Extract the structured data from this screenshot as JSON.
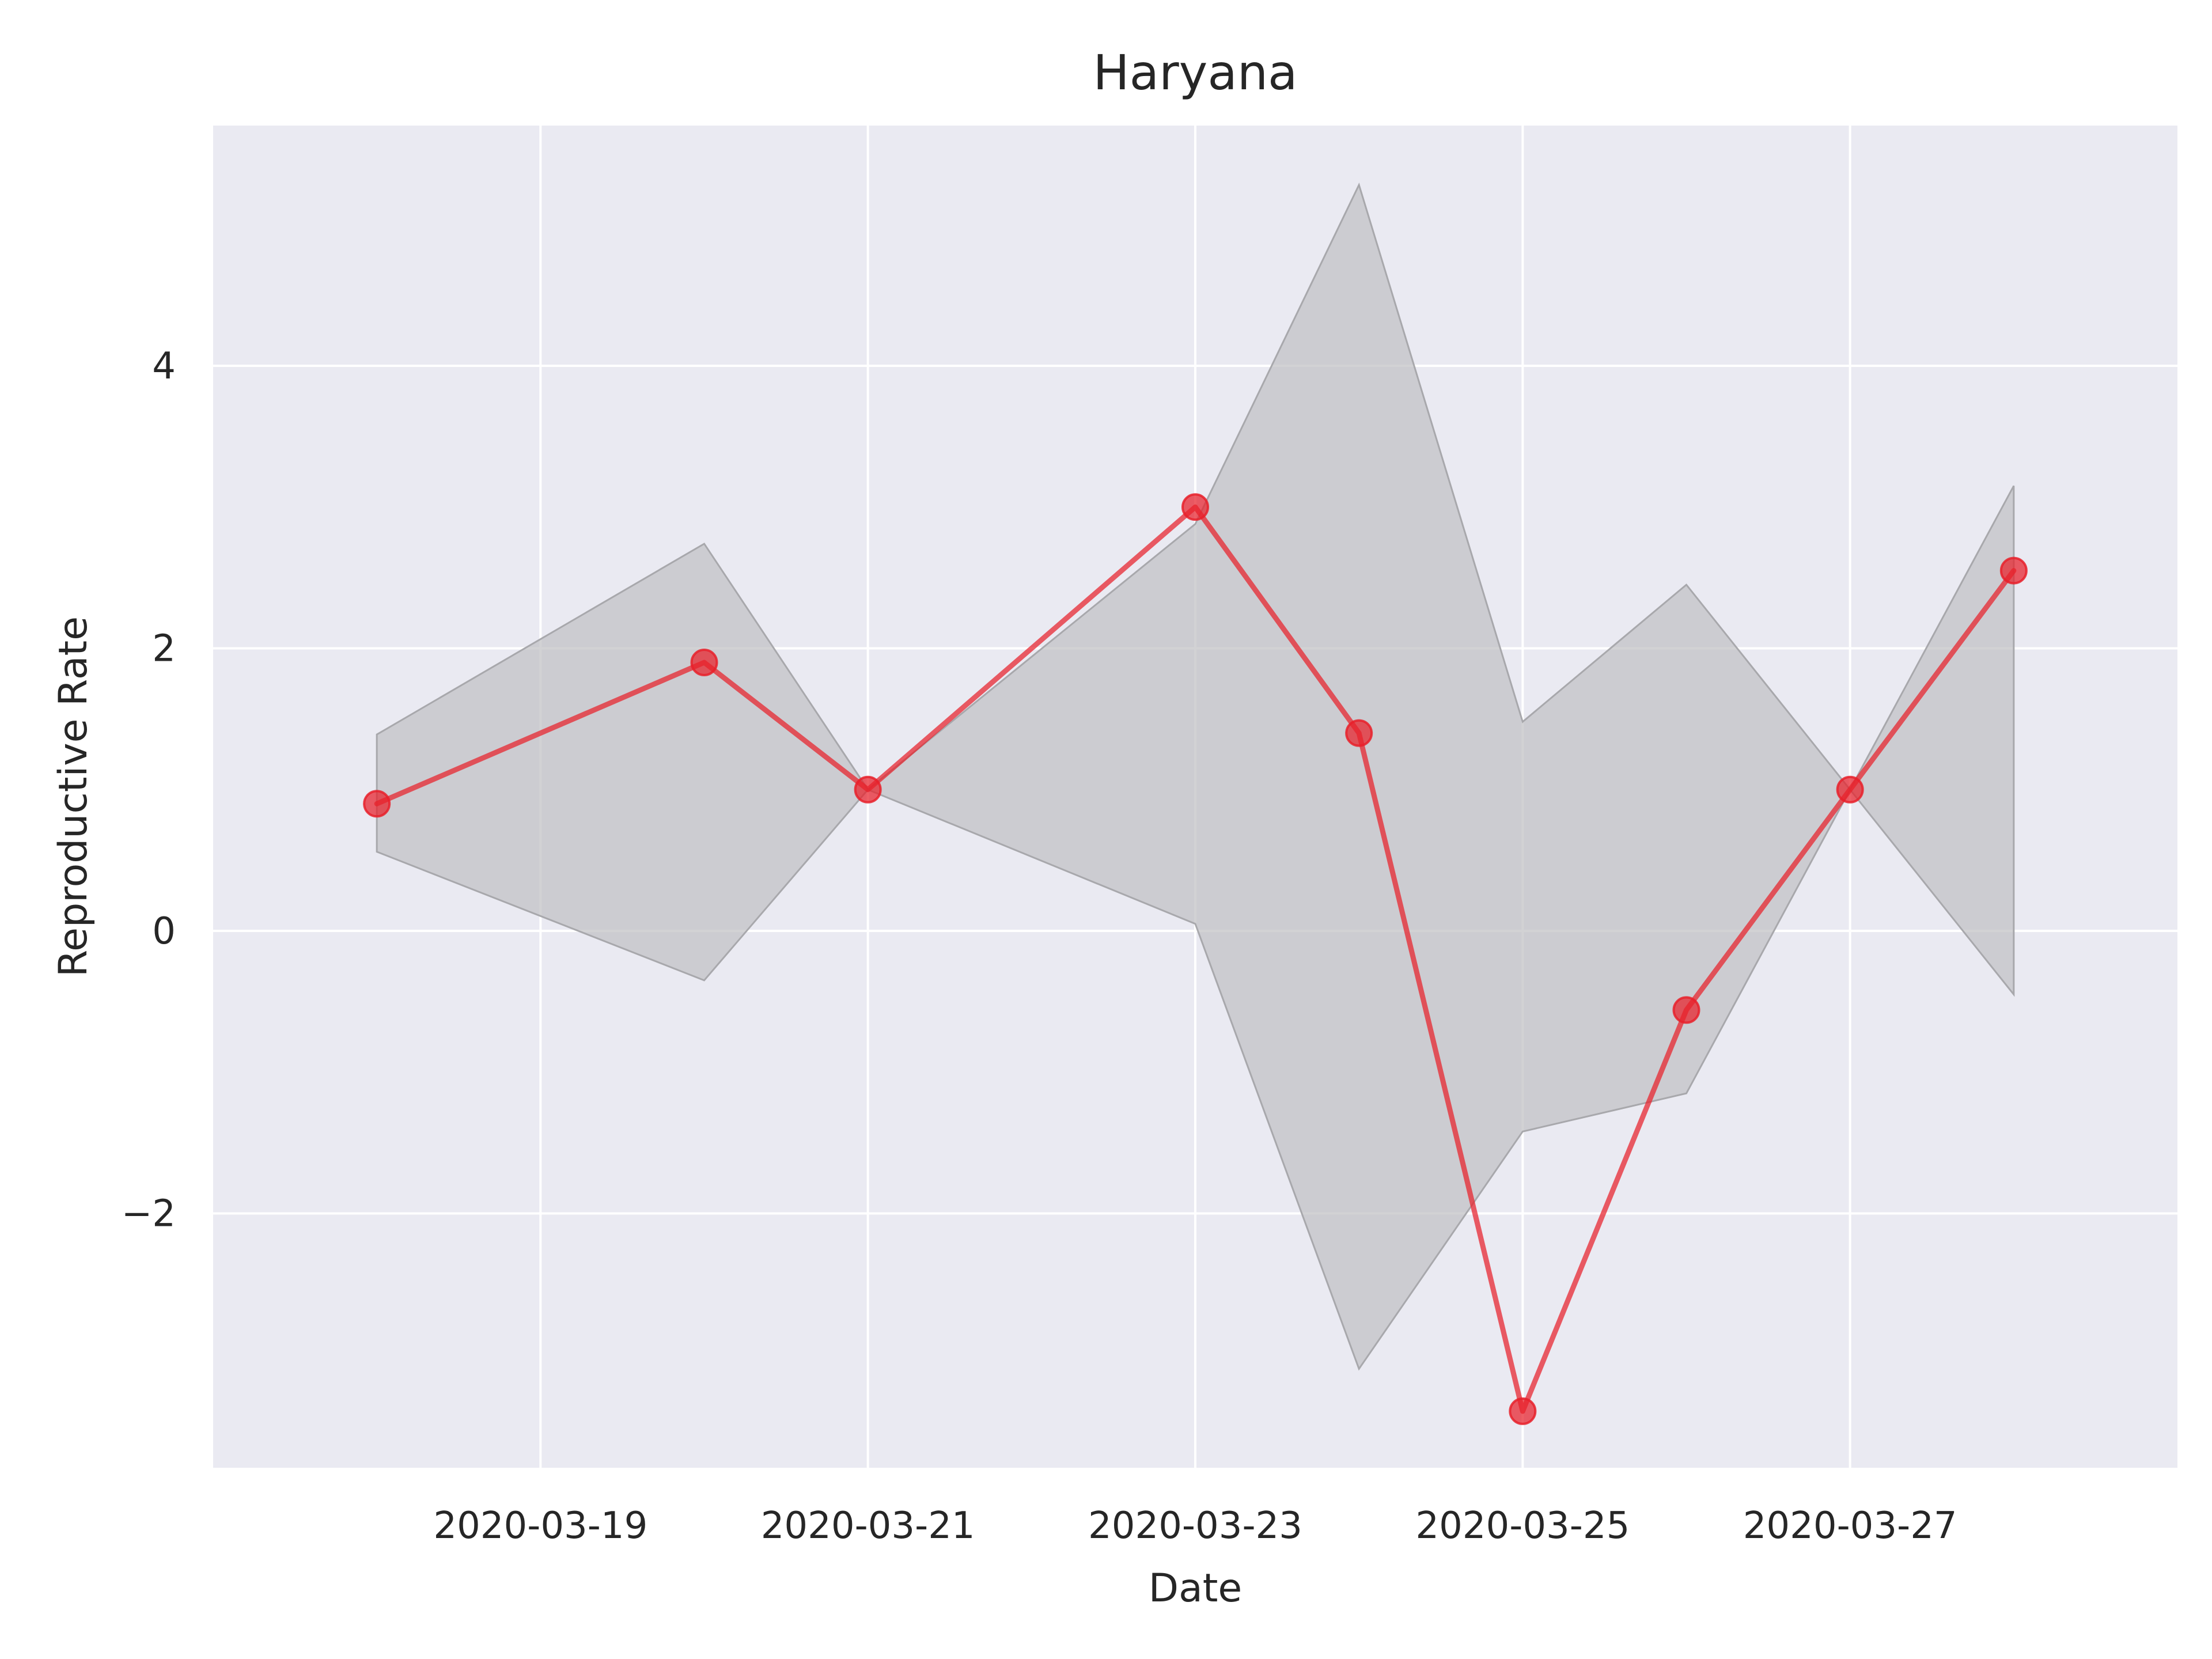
{
  "chart_data": {
    "type": "line",
    "title": "Haryana",
    "xlabel": "Date",
    "ylabel": "Reproductive Rate",
    "x_ticks": [
      "2020-03-19",
      "2020-03-21",
      "2020-03-23",
      "2020-03-25",
      "2020-03-27"
    ],
    "y_ticks": [
      -2,
      0,
      2,
      4
    ],
    "y_tick_labels": [
      "−2",
      "0",
      "2",
      "4"
    ],
    "xlim": [
      "2020-03-17",
      "2020-03-29"
    ],
    "ylim": [
      -3.8,
      5.7
    ],
    "grid": true,
    "legend": "none",
    "series": [
      {
        "x": [
          "2020-03-18",
          "2020-03-20",
          "2020-03-21",
          "2020-03-23",
          "2020-03-24",
          "2020-03-25",
          "2020-03-26",
          "2020-03-27",
          "2020-03-28"
        ],
        "values": [
          0.9,
          1.9,
          1.0,
          3.0,
          1.4,
          -3.4,
          -0.56,
          1.0,
          2.55
        ],
        "lower": [
          0.56,
          -0.35,
          1.0,
          0.05,
          -3.1,
          -1.42,
          -1.15,
          1.0,
          -0.45
        ],
        "upper": [
          1.39,
          2.74,
          1.0,
          2.88,
          5.28,
          1.48,
          2.45,
          1.0,
          3.15
        ],
        "color": "#e8202a"
      }
    ],
    "colors": {
      "plot_background": "#eaeaf2",
      "grid": "#ffffff",
      "band": "#c0c0c4"
    }
  }
}
